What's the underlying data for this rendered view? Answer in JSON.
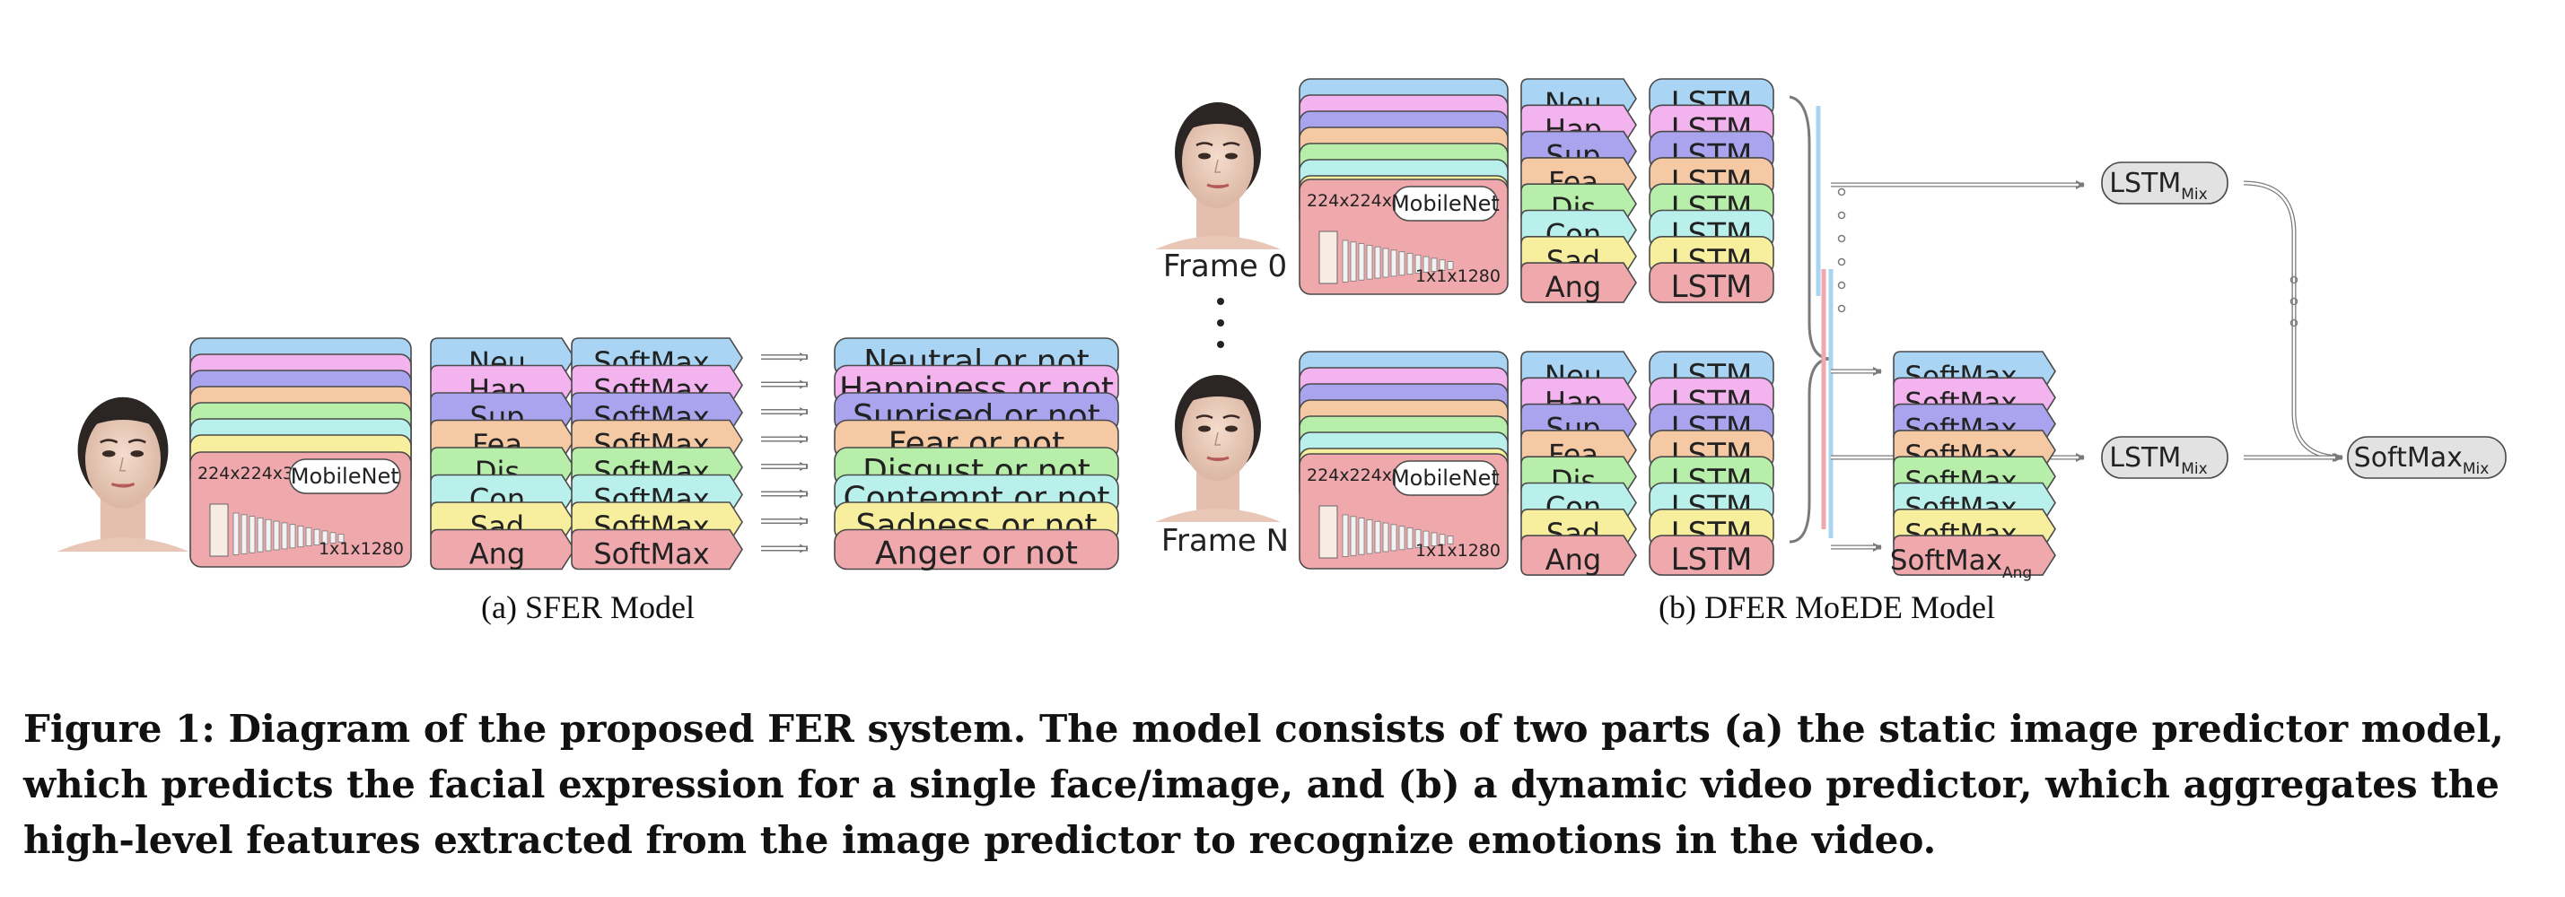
{
  "colors": [
    "#a9d4f3",
    "#f2b3ef",
    "#aaa4ee",
    "#f6c9a5",
    "#b7efaa",
    "#b9f0ec",
    "#f8ef9e",
    "#efa9ad"
  ],
  "sfer": {
    "input_size": "224x224x3",
    "backbone": "MobileNet",
    "feature_size": "1x1x1280",
    "emotions": [
      "Neu",
      "Hap",
      "Sup",
      "Fea",
      "Dis",
      "Con",
      "Sad",
      "Ang"
    ],
    "softmax": [
      "SoftMax",
      "SoftMax",
      "SoftMax",
      "SoftMax",
      "SoftMax",
      "SoftMax",
      "SoftMax",
      "SoftMax"
    ],
    "outputs": [
      "Neutral or not",
      "Happiness or not",
      "Suprised or not",
      "Fear or not",
      "Disgust or not",
      "Contempt or not",
      "Sadness or not",
      "Anger or not"
    ],
    "caption": "(a)  SFER Model"
  },
  "dfer": {
    "frame0_label": "Frame 0",
    "frameN_label": "Frame N",
    "input_size": "224x224x3",
    "backbone": "MobileNet",
    "feature_size": "1x1x1280",
    "emotions": [
      "Neu",
      "Hap",
      "Sup",
      "Fea",
      "Dis",
      "Con",
      "Sad",
      "Ang"
    ],
    "lstm_label": "LSTM",
    "softmax_base": "SoftMax",
    "softmax_subs": [
      "",
      "",
      "",
      "",
      "",
      "",
      "",
      "Ang"
    ],
    "mix_label": "LSTM",
    "mix_sub": "Mix",
    "softmax_mix_label": "SoftMax",
    "softmax_mix_sub": "Mix",
    "caption": "(b)  DFER MoEDE Model"
  },
  "figure_caption": "Figure 1: Diagram of the proposed FER system. The model consists of two parts (a) the static image predictor model, which predicts the facial expression for a single face/image, and (b) a dynamic video predictor, which aggregates the high-level features extracted from the image predictor to recognize emotions in the video."
}
